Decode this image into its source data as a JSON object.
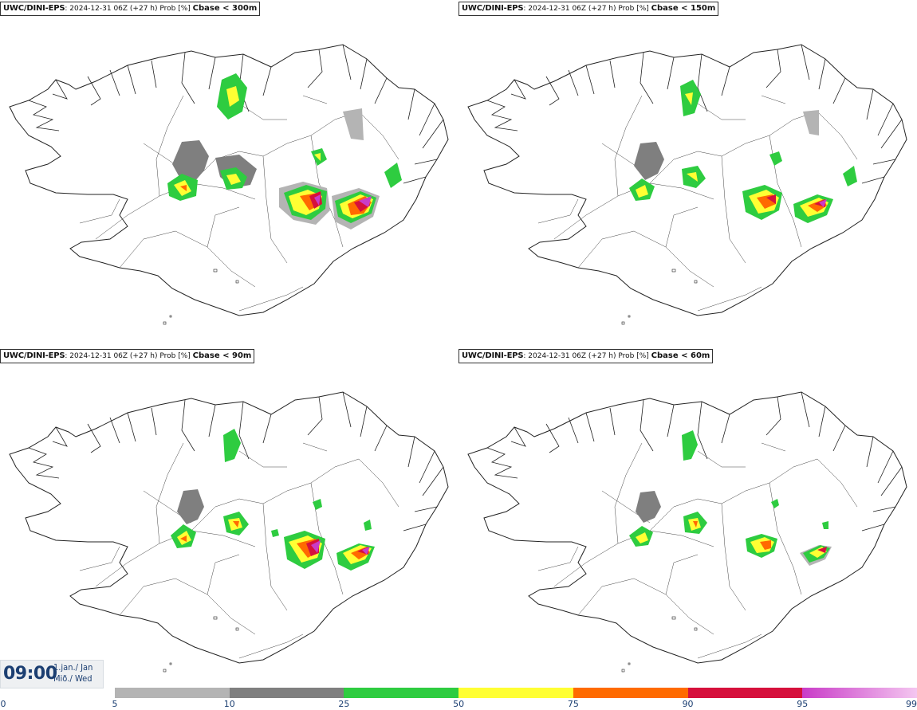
{
  "panels": [
    {
      "model": "UWC/DINI-EPS",
      "info": "2024-12-31 06Z (+27 h) Prob [%]",
      "variable": "Cbase < 300m"
    },
    {
      "model": "UWC/DINI-EPS",
      "info": "2024-12-31 06Z (+27 h) Prob [%]",
      "variable": "Cbase < 150m"
    },
    {
      "model": "UWC/DINI-EPS",
      "info": "2024-12-31 06Z (+27 h) Prob [%]",
      "variable": "Cbase < 90m"
    },
    {
      "model": "UWC/DINI-EPS",
      "info": "2024-12-31 06Z (+27 h) Prob [%]",
      "variable": "Cbase < 60m"
    }
  ],
  "valid_time": {
    "time": "09:00",
    "date": "1.jan./ Jan",
    "day": "Mið./ Wed"
  },
  "colorbar": {
    "ticks": [
      "0",
      "5",
      "10",
      "25",
      "50",
      "75",
      "90",
      "95",
      "99"
    ],
    "colors": [
      "#b4b4b4",
      "#7f7f7f",
      "#2ecc40",
      "#ffff33",
      "#ff6a00",
      "#d6103c",
      "#c93cc8"
    ]
  }
}
